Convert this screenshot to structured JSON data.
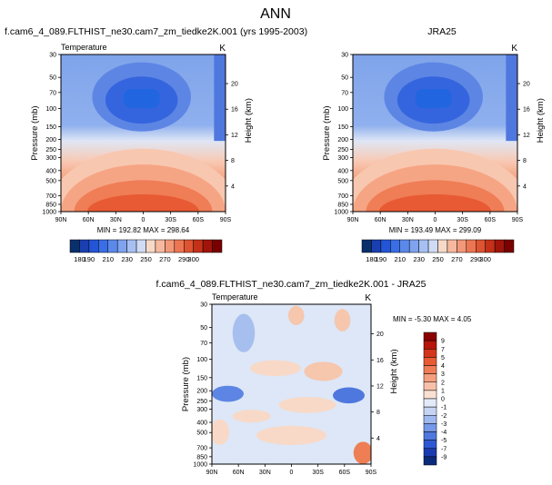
{
  "page_title": "ANN",
  "colors": {
    "cold_deep": "#08306b",
    "cold": "#2166e0",
    "mid": "#dfe6f5",
    "warm": "#f7a98a",
    "hot": "#8b0000"
  },
  "chart_data": [
    {
      "type": "heatmap",
      "title": "f.cam6_4_089.FLTHIST_ne30.cam7_zm_tiedke2K.001 (yrs 1995-2003)",
      "field_label": "Temperature",
      "units": "K",
      "ylabel": "Pressure (mb)",
      "ylabel_right": "Height (km)",
      "x_ticks": [
        "90N",
        "60N",
        "30N",
        "0",
        "30S",
        "60S",
        "90S"
      ],
      "p_ticks": [
        "30",
        "50",
        "70",
        "100",
        "150",
        "200",
        "250",
        "300",
        "400",
        "500",
        "700",
        "850",
        "1000"
      ],
      "z_ticks": [
        "20",
        "16",
        "12",
        "8",
        "4"
      ],
      "stats": "MIN = 192.82   MAX = 298.64",
      "min": 192.82,
      "max": 298.64,
      "colorbar_labels": [
        "180",
        "190",
        "210",
        "230",
        "250",
        "270",
        "290",
        "300"
      ]
    },
    {
      "type": "heatmap",
      "title": "JRA25",
      "field_label": "",
      "units": "K",
      "ylabel": "Pressure (mb)",
      "ylabel_right": "Height (km)",
      "x_ticks": [
        "90N",
        "60N",
        "30N",
        "0",
        "30S",
        "60S",
        "90S"
      ],
      "p_ticks": [
        "30",
        "50",
        "70",
        "100",
        "150",
        "200",
        "250",
        "300",
        "400",
        "500",
        "700",
        "850",
        "1000"
      ],
      "z_ticks": [
        "20",
        "16",
        "12",
        "8",
        "4"
      ],
      "stats": "MIN = 193.49   MAX = 299.09",
      "min": 193.49,
      "max": 299.09,
      "colorbar_labels": [
        "180",
        "190",
        "210",
        "230",
        "250",
        "270",
        "290",
        "300"
      ]
    },
    {
      "type": "heatmap",
      "title": "f.cam6_4_089.FLTHIST_ne30.cam7_zm_tiedke2K.001 - JRA25",
      "field_label": "Temperature",
      "units": "K",
      "ylabel": "Pressure (mb)",
      "ylabel_right": "Height (km)",
      "x_ticks": [
        "90N",
        "60N",
        "30N",
        "0",
        "30S",
        "60S",
        "90S"
      ],
      "p_ticks": [
        "30",
        "50",
        "70",
        "100",
        "150",
        "200",
        "250",
        "300",
        "400",
        "500",
        "700",
        "850",
        "1000"
      ],
      "z_ticks": [
        "20",
        "16",
        "12",
        "8",
        "4"
      ],
      "stats": "MIN =  -5.30   MAX =   4.05",
      "min": -5.3,
      "max": 4.05,
      "colorbar_labels": [
        "9",
        "7",
        "5",
        "4",
        "3",
        "2",
        "1",
        "0",
        "-1",
        "-2",
        "-3",
        "-4",
        "-5",
        "-7",
        "-9"
      ]
    }
  ]
}
